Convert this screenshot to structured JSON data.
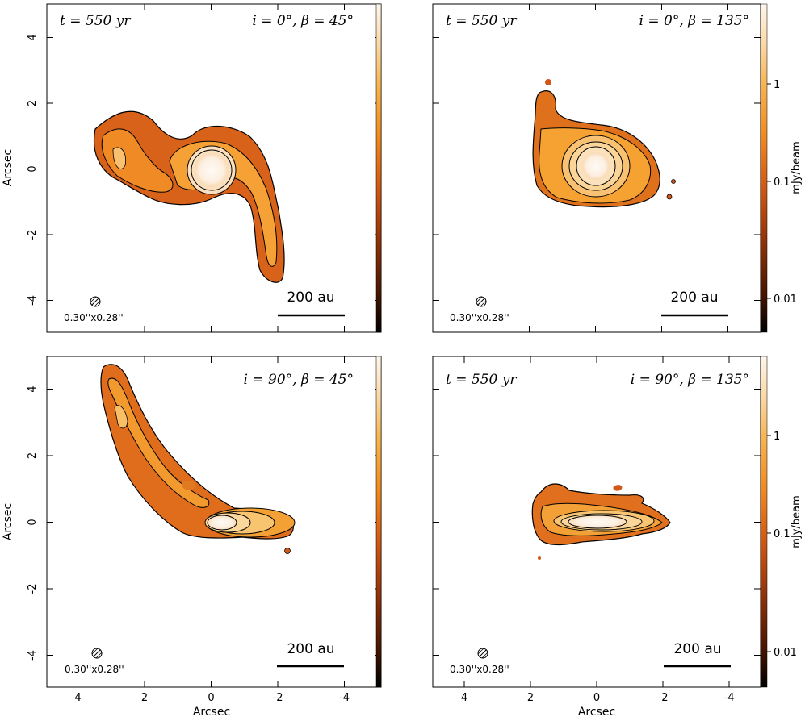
{
  "chart_data": {
    "type": "heatmap",
    "axes": {
      "x_label": "Arcsec",
      "y_label": "Arcsec",
      "xlim": [
        5,
        -5
      ],
      "ylim": [
        -5,
        5
      ],
      "x_ticks": [
        4,
        2,
        0,
        -2,
        -4
      ],
      "y_ticks": [
        4,
        2,
        0,
        -2,
        -4
      ]
    },
    "colorbar": {
      "label": "mJy/beam",
      "scale": "log",
      "range": [
        0.005,
        3
      ],
      "ticks": [
        1,
        0.1,
        0.01
      ],
      "colors": [
        "#000000",
        "#5a1c00",
        "#b3420a",
        "#e0691a",
        "#f79a1e",
        "#fbc876",
        "#fdf1e2"
      ]
    },
    "panels": [
      {
        "id": "top-left",
        "time": "t = 550 yr",
        "params": "i = 0°, β = 45°",
        "beam": "0.30''x0.28''",
        "scale_bar": "200 au",
        "structure": "spiral"
      },
      {
        "id": "top-right",
        "time": "t = 550 yr",
        "params": "i = 0°, β = 135°",
        "beam": "0.30''x0.28''",
        "scale_bar": "200 au",
        "structure": "disk-with-arm"
      },
      {
        "id": "bottom-left",
        "time": "",
        "params": "i = 90°, β = 45°",
        "beam": "0.30''x0.28''",
        "scale_bar": "200 au",
        "structure": "edge-on-arc"
      },
      {
        "id": "bottom-right",
        "time": "t = 550 yr",
        "params": "i = 90°, β = 135°",
        "beam": "0.30''x0.28''",
        "scale_bar": "200 au",
        "structure": "edge-on-disk"
      }
    ]
  }
}
